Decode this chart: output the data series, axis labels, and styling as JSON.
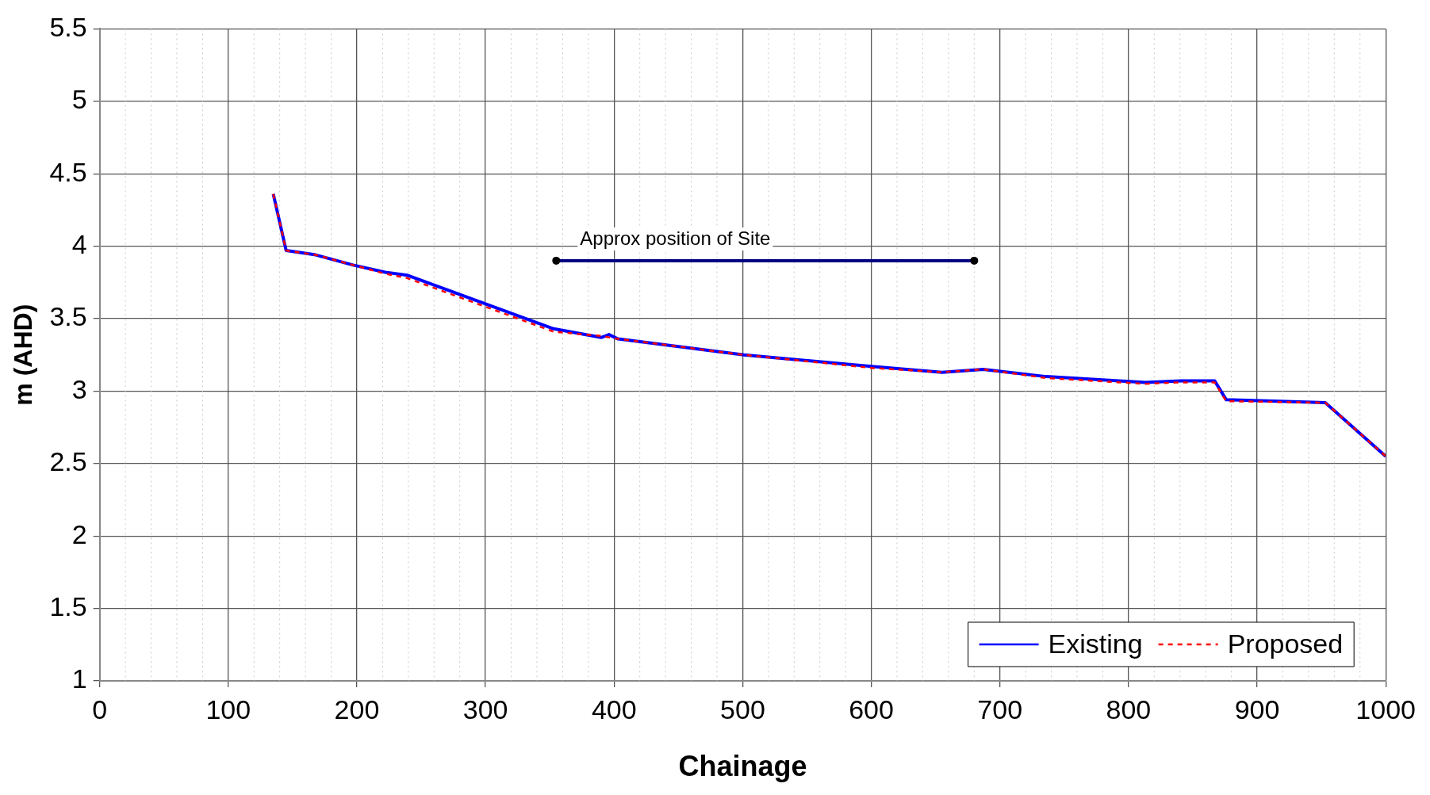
{
  "chart_data": {
    "type": "line",
    "xlabel": "Chainage",
    "ylabel": "m (AHD)",
    "xlim": [
      0,
      1000
    ],
    "xticks": [
      0,
      100,
      200,
      300,
      400,
      500,
      600,
      700,
      800,
      900,
      1000
    ],
    "ylim": [
      1,
      5.5
    ],
    "yticks": [
      1,
      1.5,
      2,
      2.5,
      3,
      3.5,
      4,
      4.5,
      5,
      5.5
    ],
    "grid": true,
    "legend": "bottom right",
    "marker": "none",
    "series": [
      {
        "name": "Existing",
        "color": "#0000ff",
        "line_style": "solid",
        "x": [
          135,
          145,
          168,
          197,
          222,
          239,
          353,
          390,
          396,
          403,
          501,
          600,
          655,
          687,
          736,
          813,
          841,
          867,
          876,
          953,
          1000
        ],
        "values": [
          4.36,
          3.97,
          3.94,
          3.87,
          3.82,
          3.8,
          3.43,
          3.37,
          3.39,
          3.36,
          3.25,
          3.17,
          3.13,
          3.15,
          3.1,
          3.06,
          3.07,
          3.07,
          2.94,
          2.92,
          2.55
        ]
      },
      {
        "name": "Proposed",
        "color": "#ff0000",
        "line_style": "dashed",
        "x": [
          135,
          145,
          168,
          197,
          222,
          239,
          353,
          390,
          403,
          501,
          600,
          655,
          687,
          736,
          813,
          841,
          867,
          876,
          953,
          1000
        ],
        "values": [
          4.36,
          3.97,
          3.94,
          3.87,
          3.81,
          3.78,
          3.41,
          3.38,
          3.36,
          3.25,
          3.16,
          3.13,
          3.15,
          3.09,
          3.05,
          3.06,
          3.06,
          2.93,
          2.92,
          2.55
        ]
      },
      {
        "color": "#000080",
        "line_style": "solid",
        "marker": "circle",
        "x": [
          355,
          680
        ],
        "values": [
          3.9,
          3.9
        ]
      }
    ],
    "annotations": [
      {
        "text": "Approx position of Site",
        "x": 355,
        "y": 3.9
      }
    ]
  }
}
